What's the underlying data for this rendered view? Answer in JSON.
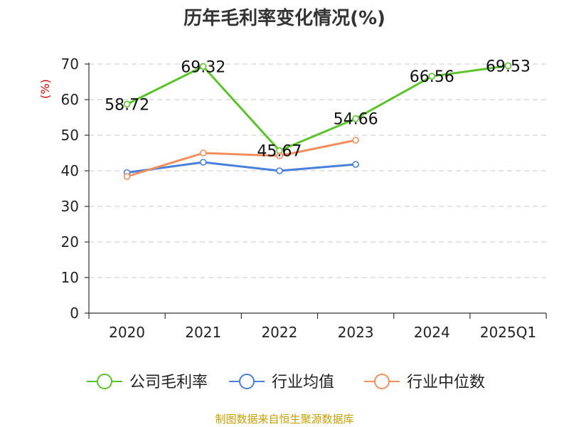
{
  "chart_data": {
    "type": "line",
    "title": "历年毛利率变化情况(%)",
    "y_unit": "(%)",
    "categories": [
      "2020",
      "2021",
      "2022",
      "2023",
      "2024",
      "2025Q1"
    ],
    "ylim": [
      0,
      70
    ],
    "yticks": [
      "0",
      "10",
      "20",
      "30",
      "40",
      "50",
      "60",
      "70"
    ],
    "grid": true,
    "legend_position": "bottom",
    "series": [
      {
        "name": "公司毛利率",
        "color": "#5cc42a",
        "values": [
          58.72,
          69.32,
          45.67,
          54.66,
          66.56,
          69.53
        ],
        "show_labels": true
      },
      {
        "name": "行业均值",
        "color": "#4a7fdc",
        "values": [
          39.5,
          42.4,
          40.0,
          41.8,
          null,
          null
        ],
        "show_labels": false
      },
      {
        "name": "行业中位数",
        "color": "#f28e5c",
        "values": [
          38.4,
          45.0,
          44.2,
          48.6,
          null,
          null
        ],
        "show_labels": false
      }
    ],
    "data_labels": [
      "58.72",
      "69.32",
      "45.67",
      "54.66",
      "66.56",
      "69.53"
    ]
  },
  "source": "制图数据来自恒生聚源数据库"
}
